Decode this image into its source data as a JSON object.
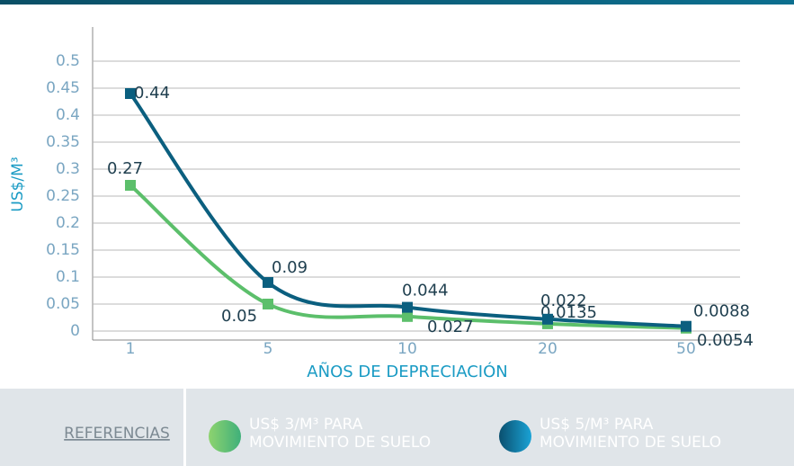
{
  "chart_data": {
    "type": "line",
    "ylabel": "US$/M³",
    "xlabel": "AÑOS DE DEPRECIACIÓN",
    "legend_title": "REFERENCIAS",
    "categories": [
      "1",
      "5",
      "10",
      "20",
      "50"
    ],
    "ylim": [
      0,
      0.5
    ],
    "yticks": [
      0,
      0.05,
      0.1,
      0.15,
      0.2,
      0.25,
      0.3,
      0.35,
      0.4,
      0.45,
      0.5
    ],
    "grid": true,
    "series": [
      {
        "name": "US$ 3/M³ PARA\nMOVIMIENTO DE SUELO",
        "color": "#5cbf6b",
        "values": [
          0.27,
          0.05,
          0.027,
          0.0135,
          0.0054
        ]
      },
      {
        "name": "US$ 5/M³ PARA\nMOVIMIENTO DE SUELO",
        "color": "#0b5f7f",
        "values": [
          0.44,
          0.09,
          0.044,
          0.022,
          0.0088
        ]
      }
    ]
  }
}
